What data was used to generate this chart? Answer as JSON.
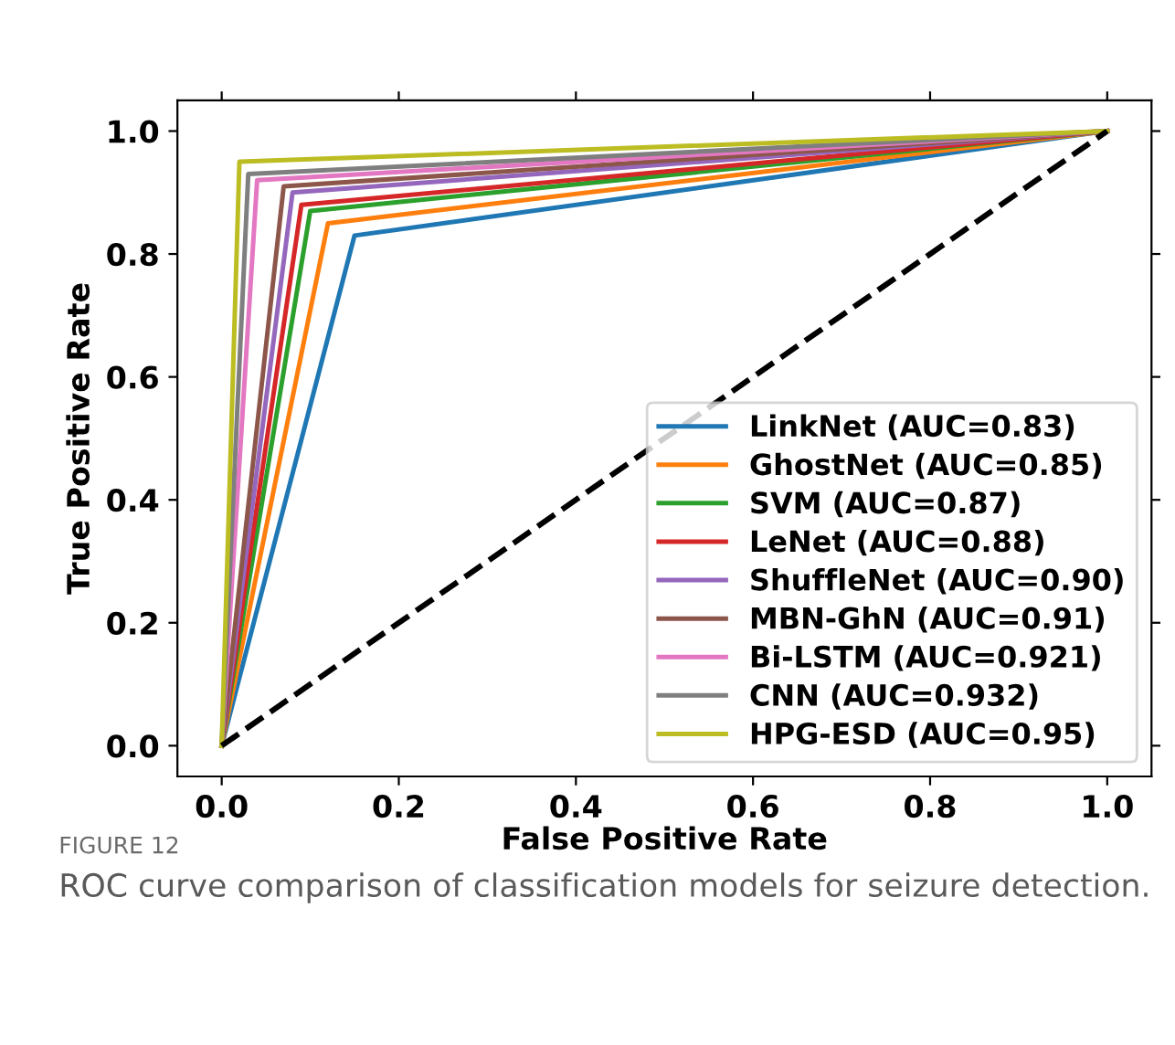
{
  "chart_data": {
    "type": "line",
    "xlabel": "False Positive Rate",
    "ylabel": "True Positive Rate",
    "xlim": [
      -0.05,
      1.05
    ],
    "ylim": [
      -0.05,
      1.05
    ],
    "xticks": [
      {
        "value": 0,
        "label": "0.0"
      },
      0.2,
      0.4,
      0.6,
      0.8,
      {
        "value": 1,
        "label": "1.0"
      }
    ],
    "yticks": [
      {
        "value": 0,
        "label": "0.0"
      },
      0.2,
      0.4,
      0.6,
      0.8,
      {
        "value": 1,
        "label": "1.0"
      }
    ],
    "grid": false,
    "legend": "bottom right",
    "line_style": "solid",
    "series": [
      {
        "name": "LinkNet (AUC=0.83)",
        "color": "#1f77b4",
        "x": [
          0,
          0.15,
          1
        ],
        "values": [
          0,
          0.83,
          1
        ]
      },
      {
        "name": "GhostNet (AUC=0.85)",
        "color": "#ff7f0e",
        "x": [
          0,
          0.12,
          1
        ],
        "values": [
          0,
          0.85,
          1
        ]
      },
      {
        "name": "SVM (AUC=0.87)",
        "color": "#2ca02c",
        "x": [
          0,
          0.1,
          1
        ],
        "values": [
          0,
          0.87,
          1
        ]
      },
      {
        "name": "LeNet (AUC=0.88)",
        "color": "#d62728",
        "x": [
          0,
          0.09,
          1
        ],
        "values": [
          0,
          0.88,
          1
        ]
      },
      {
        "name": "ShuffleNet (AUC=0.90)",
        "color": "#9467bd",
        "x": [
          0,
          0.08,
          1
        ],
        "values": [
          0,
          0.9,
          1
        ]
      },
      {
        "name": "MBN-GhN (AUC=0.91)",
        "color": "#8c564b",
        "x": [
          0,
          0.07,
          1
        ],
        "values": [
          0,
          0.91,
          1
        ]
      },
      {
        "name": "Bi-LSTM (AUC=0.921)",
        "color": "#e377c2",
        "x": [
          0,
          0.04,
          1
        ],
        "values": [
          0,
          0.92,
          1
        ]
      },
      {
        "name": "CNN (AUC=0.932)",
        "color": "#7f7f7f",
        "x": [
          0,
          0.03,
          1
        ],
        "values": [
          0,
          0.93,
          1
        ]
      },
      {
        "name": "HPG-ESD (AUC=0.95)",
        "color": "#bcbd22",
        "x": [
          0,
          0.02,
          1
        ],
        "values": [
          0,
          0.95,
          1
        ]
      },
      {
        "color": "#000000",
        "x": [
          0,
          1
        ],
        "values": [
          0,
          1
        ],
        "line_style": "dashed"
      }
    ],
    "annotations": [
      "FIGURE 12",
      "ROC curve comparison of classification models for seizure detection."
    ]
  }
}
